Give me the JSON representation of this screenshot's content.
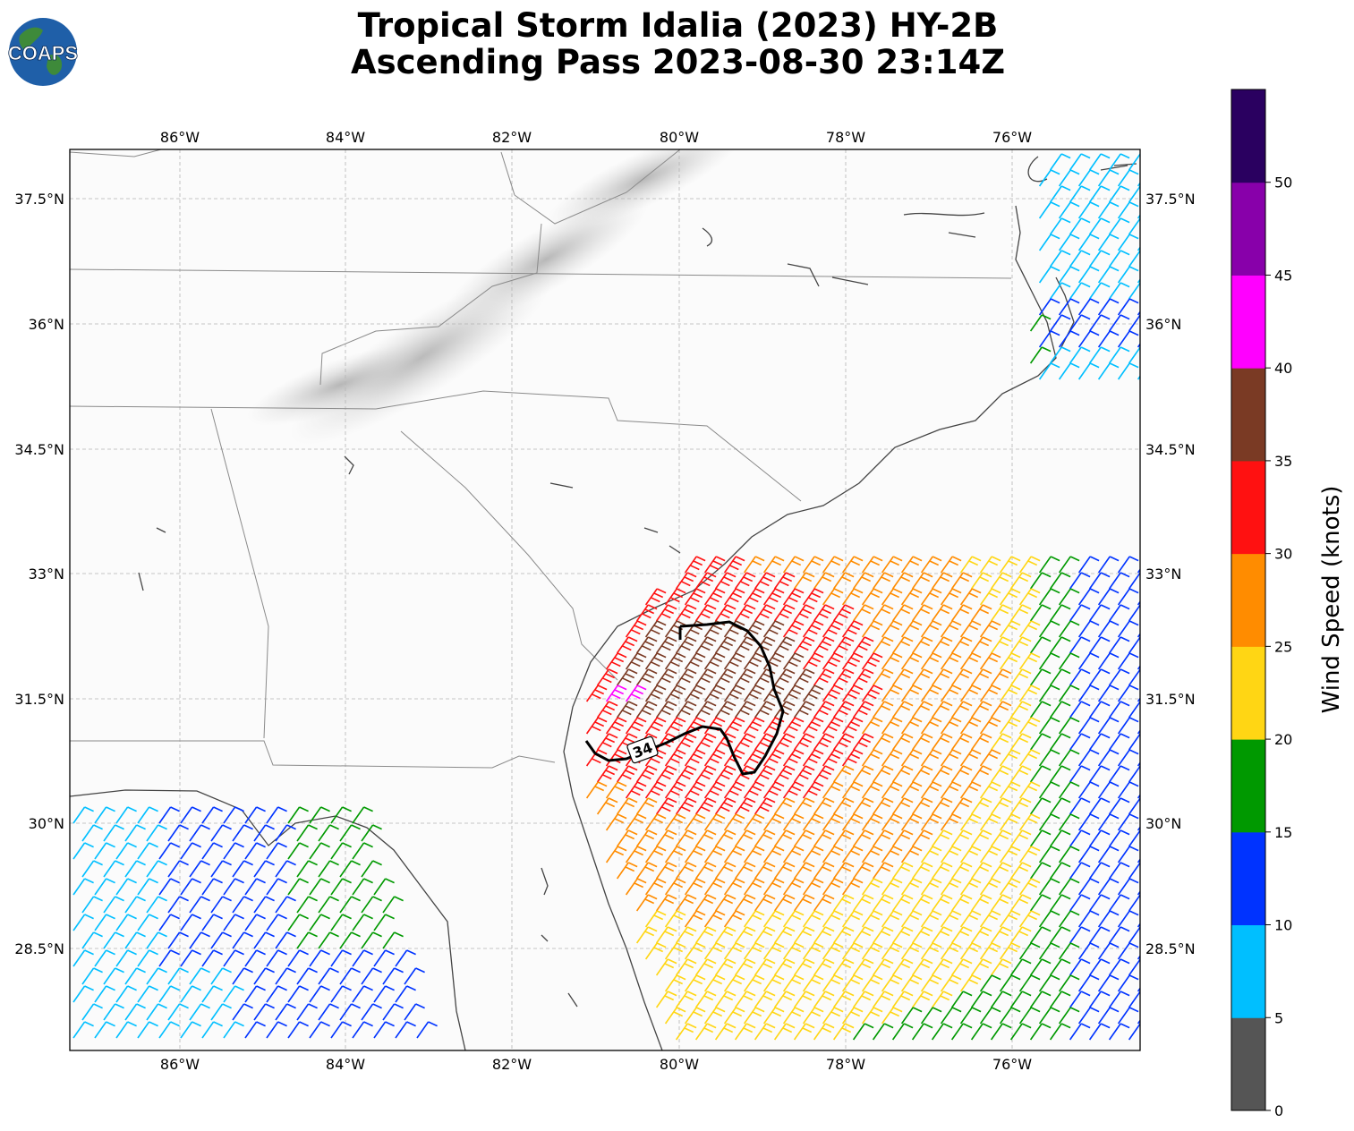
{
  "title_line1": "Tropical Storm Idalia (2023) HY-2B",
  "title_line2": "Ascending Pass 2023-08-30 23:14Z",
  "logo_text": "COAPS",
  "map": {
    "lon_ticks": [
      "86°W",
      "84°W",
      "82°W",
      "80°W",
      "78°W",
      "76°W"
    ],
    "lat_ticks": [
      "37.5°N",
      "36°N",
      "34.5°N",
      "33°N",
      "31.5°N",
      "30°N",
      "28.5°N"
    ],
    "contour_label": "34"
  },
  "colorbar": {
    "label": "Wind Speed (knots)",
    "ticks": [
      "0",
      "5",
      "10",
      "15",
      "20",
      "25",
      "30",
      "35",
      "40",
      "45",
      "50"
    ],
    "colors": [
      "#555555",
      "#00bfff",
      "#0033ff",
      "#009900",
      "#ffd614",
      "#ff8c00",
      "#ff1111",
      "#7a3a24",
      "#ff00ff",
      "#8800aa",
      "#2a0060"
    ]
  }
}
